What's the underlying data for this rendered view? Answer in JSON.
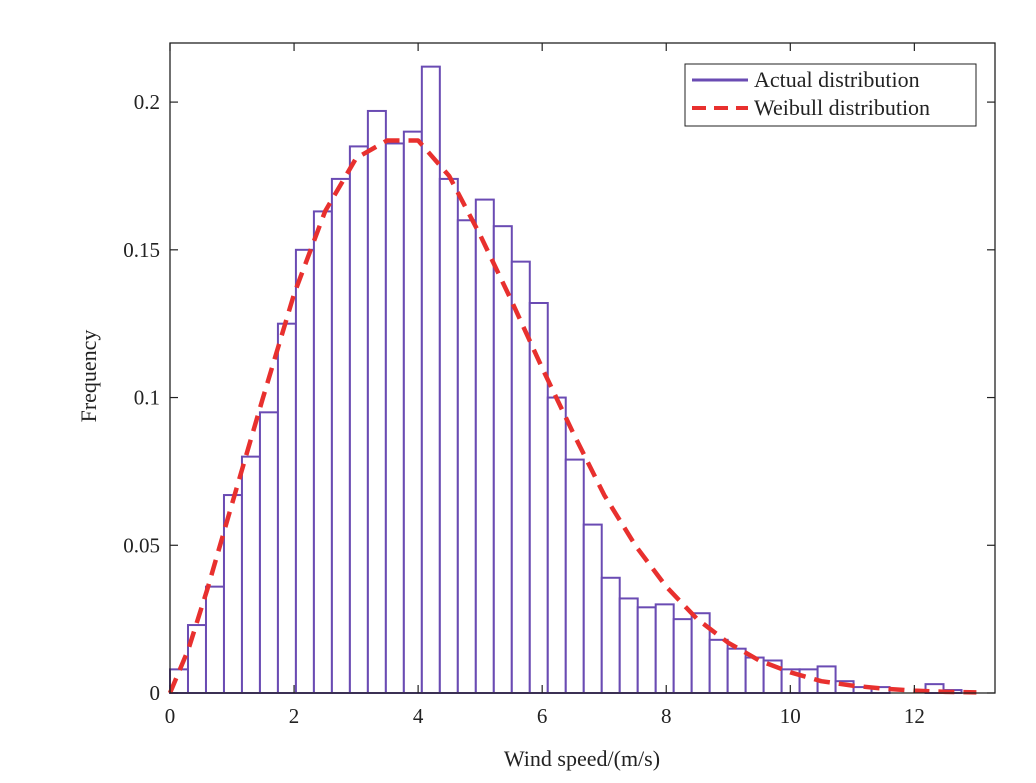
{
  "chart_data": {
    "type": "bar",
    "xlabel": "Wind speed/(m/s)",
    "ylabel": "Frequency",
    "xlim": [
      0,
      13.3
    ],
    "ylim": [
      0,
      0.22
    ],
    "grid": false,
    "legend_position": "top-right",
    "x_ticks": [
      {
        "value": 0,
        "label": "0"
      },
      {
        "value": 2,
        "label": "2"
      },
      {
        "value": 4,
        "label": "4"
      },
      {
        "value": 6,
        "label": "6"
      },
      {
        "value": 8,
        "label": "8"
      },
      {
        "value": 10,
        "label": "10"
      },
      {
        "value": 12,
        "label": "12"
      }
    ],
    "y_ticks": [
      {
        "value": 0,
        "label": "0"
      },
      {
        "value": 0.05,
        "label": "0.05"
      },
      {
        "value": 0.1,
        "label": "0.1"
      },
      {
        "value": 0.15,
        "label": "0.15"
      },
      {
        "value": 0.2,
        "label": "0.2"
      }
    ],
    "bin_width": 0.29,
    "series": [
      {
        "name": "Actual distribution",
        "type": "histogram",
        "color": "#6a4bb3",
        "bin_starts": [
          0.0,
          0.29,
          0.58,
          0.87,
          1.16,
          1.45,
          1.74,
          2.03,
          2.32,
          2.61,
          2.9,
          3.19,
          3.48,
          3.77,
          4.06,
          4.35,
          4.64,
          4.93,
          5.22,
          5.51,
          5.8,
          6.09,
          6.38,
          6.67,
          6.96,
          7.25,
          7.54,
          7.83,
          8.12,
          8.41,
          8.7,
          8.99,
          9.28,
          9.57,
          9.86,
          10.15,
          10.44,
          10.73,
          11.02,
          11.31,
          11.6,
          11.89,
          12.18,
          12.47,
          12.76
        ],
        "values": [
          0.008,
          0.023,
          0.036,
          0.067,
          0.08,
          0.095,
          0.125,
          0.15,
          0.163,
          0.174,
          0.185,
          0.197,
          0.186,
          0.19,
          0.212,
          0.174,
          0.16,
          0.167,
          0.158,
          0.146,
          0.132,
          0.1,
          0.079,
          0.057,
          0.039,
          0.032,
          0.029,
          0.03,
          0.025,
          0.027,
          0.018,
          0.015,
          0.012,
          0.011,
          0.008,
          0.008,
          0.009,
          0.004,
          0.002,
          0.002,
          0.0,
          0.0,
          0.003,
          0.001,
          0.0
        ]
      },
      {
        "name": "Weibull distribution",
        "type": "line",
        "style": "dashed",
        "color": "#e8302e",
        "x": [
          0.0,
          0.3,
          0.6,
          1.0,
          1.5,
          2.0,
          2.5,
          3.0,
          3.5,
          4.0,
          4.5,
          5.0,
          5.5,
          6.0,
          6.5,
          7.0,
          7.5,
          8.0,
          8.5,
          9.0,
          9.5,
          10.0,
          10.5,
          11.0,
          11.5,
          12.0,
          12.5,
          13.0
        ],
        "y": [
          0.0,
          0.015,
          0.035,
          0.064,
          0.1,
          0.135,
          0.163,
          0.181,
          0.187,
          0.187,
          0.175,
          0.155,
          0.133,
          0.11,
          0.088,
          0.067,
          0.05,
          0.036,
          0.025,
          0.017,
          0.011,
          0.007,
          0.004,
          0.0025,
          0.0015,
          0.0008,
          0.0004,
          0.0002
        ]
      }
    ]
  }
}
